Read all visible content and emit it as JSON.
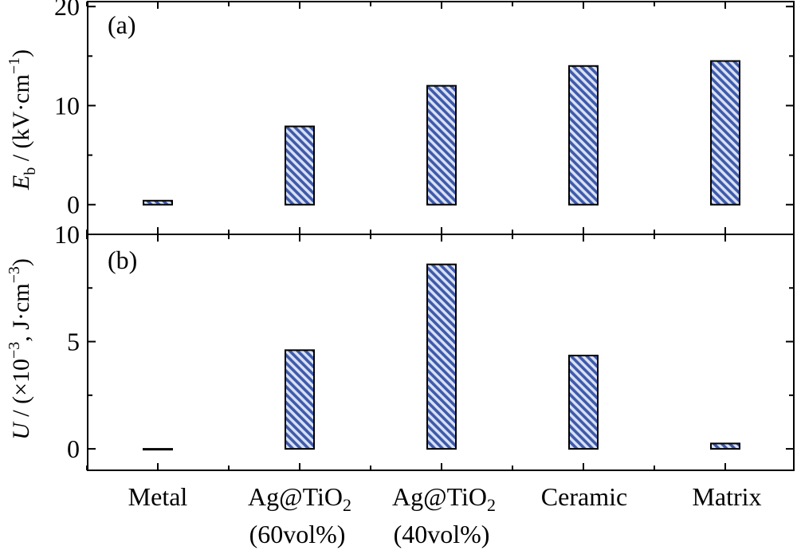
{
  "chart_data": [
    {
      "panel_label": "(a)",
      "type": "bar",
      "categories": [
        "Metal",
        "Ag@TiO2 (60vol%)",
        "Ag@TiO2 (40vol%)",
        "Ceramic",
        "Matrix"
      ],
      "values": [
        0.4,
        7.9,
        12.0,
        14.0,
        14.5
      ],
      "ylabel_var": "E",
      "ylabel_sub": "b",
      "ylabel_units": " / (kV·cm",
      "ylabel_exp": "−1",
      "ylabel_close": ")",
      "ylim": [
        -3,
        20.5
      ],
      "yticks": [
        0,
        10,
        20
      ],
      "grid": false,
      "bar_pattern": "diagonal hatch"
    },
    {
      "panel_label": "(b)",
      "type": "bar",
      "categories": [
        "Metal",
        "Ag@TiO2 (60vol%)",
        "Ag@TiO2 (40vol%)",
        "Ceramic",
        "Matrix"
      ],
      "values": [
        0.0,
        4.6,
        8.6,
        4.35,
        0.25
      ],
      "ylabel_var": "U",
      "ylabel_units": " / (×10",
      "ylabel_exp": "−3",
      "ylabel_close": ", J·cm",
      "ylabel_exp2": "−3",
      "ylabel_close2": ")",
      "ylim": [
        -1,
        10
      ],
      "yticks": [
        0,
        5,
        10
      ],
      "grid": false,
      "bar_pattern": "diagonal hatch"
    }
  ],
  "x_labels": [
    {
      "main": "Metal"
    },
    {
      "main": "Ag@TiO",
      "sub": "2",
      "line2": "(60vol%)"
    },
    {
      "main": "Ag@TiO",
      "sub": "2",
      "line2": "(40vol%)"
    },
    {
      "main": "Ceramic"
    },
    {
      "main": "Matrix"
    }
  ],
  "colors": {
    "bar_fill": "#3f5aa8",
    "bar_hatch_light": "#d9e1f5",
    "bar_stroke": "#000000",
    "axis": "#000000"
  }
}
